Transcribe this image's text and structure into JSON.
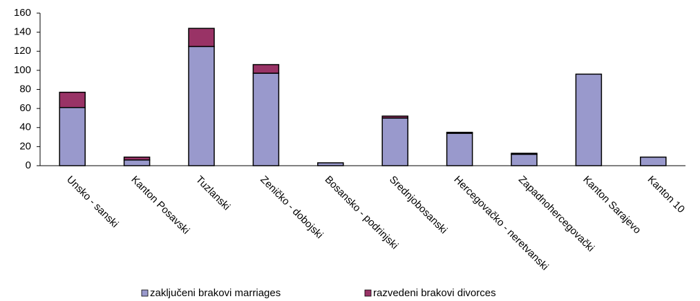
{
  "chart_data": {
    "type": "stacked_bar",
    "categories": [
      "Unsko - sanski",
      "Kanton Posavski",
      "Tuzlanski",
      "Zeničko - dobojski",
      "Bosansko - podrinjski",
      "Srednjobosanski",
      "Hercegovačko - neretvanski",
      "Zapadnohercegovački",
      "Kanton Sarajevo",
      "Kanton 10"
    ],
    "series": [
      {
        "name": "zaključeni brakovi marriages",
        "color": "#9999cc",
        "values": [
          61,
          6,
          125,
          97,
          3,
          50,
          34,
          12,
          96,
          9
        ]
      },
      {
        "name": "razvedeni brakovi divorces",
        "color": "#993366",
        "values": [
          16,
          3,
          19,
          9,
          0,
          2,
          1,
          1,
          0,
          0
        ]
      }
    ],
    "ylim": [
      0,
      160
    ],
    "yticks": [
      0,
      20,
      40,
      60,
      80,
      100,
      120,
      140,
      160
    ],
    "grid": false,
    "legend": "bottom"
  }
}
